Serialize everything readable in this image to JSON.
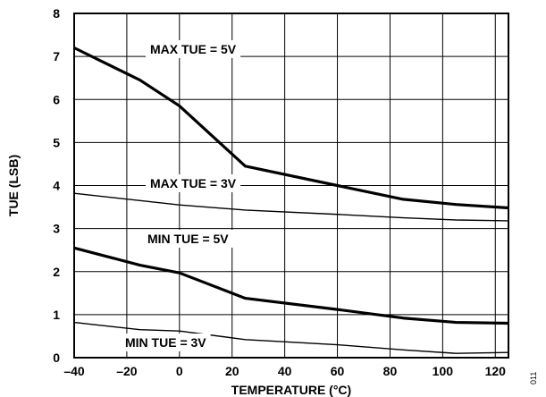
{
  "chart_data": {
    "type": "line",
    "title": "",
    "xlabel": "TEMPERATURE (°C)",
    "ylabel": "TUE (LSB)",
    "xlim": [
      -40,
      125
    ],
    "ylim": [
      0,
      8
    ],
    "xticks": [
      -40,
      -20,
      0,
      20,
      40,
      60,
      80,
      100,
      120
    ],
    "yticks": [
      0,
      1,
      2,
      3,
      4,
      5,
      6,
      7,
      8
    ],
    "grid": true,
    "figure_id": "011",
    "series": [
      {
        "name": "MAX TUE = 5V",
        "x": [
          -40,
          -15,
          0,
          25,
          60,
          85,
          105,
          125
        ],
        "y": [
          7.2,
          6.45,
          5.85,
          4.45,
          4.0,
          3.68,
          3.56,
          3.48
        ],
        "color": "#000000",
        "weight": "heavy"
      },
      {
        "name": "MAX TUE = 3V",
        "x": [
          -40,
          -15,
          0,
          25,
          60,
          85,
          105,
          125
        ],
        "y": [
          3.82,
          3.65,
          3.55,
          3.43,
          3.33,
          3.25,
          3.2,
          3.18
        ],
        "color": "#000000",
        "weight": "light"
      },
      {
        "name": "MIN TUE = 5V",
        "x": [
          -40,
          -15,
          0,
          25,
          60,
          85,
          105,
          125
        ],
        "y": [
          2.55,
          2.15,
          1.97,
          1.38,
          1.12,
          0.92,
          0.82,
          0.8
        ],
        "color": "#000000",
        "weight": "heavy"
      },
      {
        "name": "MIN TUE = 3V",
        "x": [
          -40,
          -15,
          0,
          25,
          60,
          85,
          105,
          125
        ],
        "y": [
          0.82,
          0.65,
          0.62,
          0.42,
          0.3,
          0.18,
          0.1,
          0.12
        ],
        "color": "#000000",
        "weight": "light"
      }
    ]
  }
}
